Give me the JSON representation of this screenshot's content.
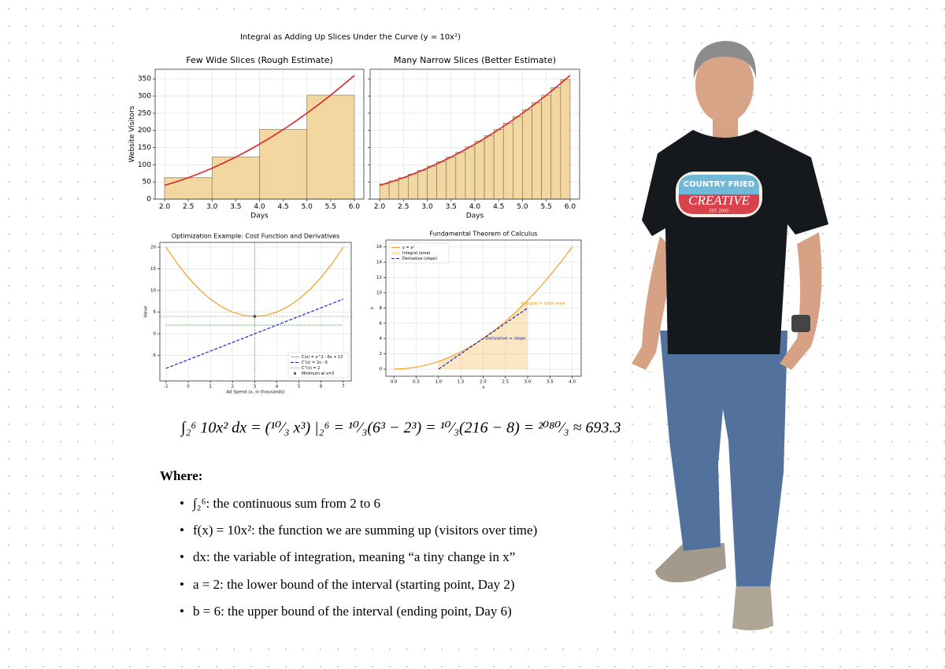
{
  "figure_title": "Integral as Adding Up Slices Under the Curve (y = 10x²)",
  "chart_data": [
    {
      "type": "bar",
      "title": "Few Wide Slices (Rough Estimate)",
      "xlabel": "Days",
      "ylabel": "Website Visitors",
      "xlim": [
        1.8,
        6.2
      ],
      "ylim": [
        0,
        378
      ],
      "xticks": [
        {
          "value": 2,
          "label": "2.0"
        },
        2.5,
        {
          "value": 3,
          "label": "3.0"
        },
        3.5,
        {
          "value": 4,
          "label": "4.0"
        },
        4.5,
        {
          "value": 5,
          "label": "5.0"
        },
        5.5,
        {
          "value": 6,
          "label": "6.0"
        }
      ],
      "yticks": [
        0,
        50,
        100,
        150,
        200,
        250,
        300,
        350
      ],
      "grid": true,
      "series": [
        {
          "type": "bar",
          "color": "#f2d8a0",
          "bins": [
            2,
            3,
            4,
            5,
            6
          ],
          "values": [
            62.5,
            122.5,
            202.5,
            302.5
          ]
        },
        {
          "type": "line",
          "color": "#d62728",
          "x": [
            2,
            2.25,
            2.5,
            2.75,
            3,
            3.25,
            3.5,
            3.75,
            4,
            4.25,
            4.5,
            4.75,
            5,
            5.25,
            5.5,
            5.75,
            6
          ],
          "values": [
            40,
            50.625,
            62.5,
            75.625,
            90,
            105.625,
            122.5,
            140.625,
            160,
            180.625,
            202.5,
            225.625,
            250,
            275.625,
            302.5,
            330.625,
            360
          ]
        }
      ]
    },
    {
      "type": "bar",
      "title": "Many Narrow Slices (Better Estimate)",
      "xlabel": "Days",
      "xlim": [
        1.8,
        6.2
      ],
      "ylim": [
        0,
        378
      ],
      "sharey": true,
      "xticks": [
        {
          "value": 2,
          "label": "2.0"
        },
        2.5,
        {
          "value": 3,
          "label": "3.0"
        },
        3.5,
        {
          "value": 4,
          "label": "4.0"
        },
        4.5,
        {
          "value": 5,
          "label": "5.0"
        },
        5.5,
        {
          "value": 6,
          "label": "6.0"
        }
      ],
      "yticks": [
        0,
        50,
        100,
        150,
        200,
        250,
        300,
        350
      ],
      "grid": true,
      "series": [
        {
          "type": "bar",
          "color": "#f2d8a0",
          "bins": [
            2,
            2.2,
            2.4,
            2.6,
            2.8,
            3,
            3.2,
            3.4,
            3.6,
            3.8,
            4,
            4.2,
            4.4,
            4.6,
            4.8,
            5,
            5.2,
            5.4,
            5.6,
            5.8,
            6
          ],
          "values": [
            44.1,
            52.9,
            62.5,
            72.9,
            84.1,
            96.1,
            108.9,
            122.5,
            136.9,
            152.1,
            168.1,
            184.9,
            202.5,
            220.9,
            240.1,
            260.1,
            280.9,
            302.5,
            324.9,
            348.1
          ]
        },
        {
          "type": "line",
          "color": "#d62728",
          "x": [
            2,
            2.25,
            2.5,
            2.75,
            3,
            3.25,
            3.5,
            3.75,
            4,
            4.25,
            4.5,
            4.75,
            5,
            5.25,
            5.5,
            5.75,
            6
          ],
          "values": [
            40,
            50.625,
            62.5,
            75.625,
            90,
            105.625,
            122.5,
            140.625,
            160,
            180.625,
            202.5,
            225.625,
            250,
            275.625,
            302.5,
            330.625,
            360
          ]
        }
      ]
    },
    {
      "type": "line",
      "title": "Optimization Example: Cost Function and Derivatives",
      "xlabel": "Ad Spend (x, in thousands)",
      "ylabel": "Value",
      "xlim": [
        -1.28,
        7.36
      ],
      "ylim": [
        -10.9,
        21.1
      ],
      "xticks": [
        -1,
        0,
        1,
        2,
        3,
        4,
        5,
        6,
        7
      ],
      "yticks": [
        -5,
        0,
        5,
        10,
        15,
        20
      ],
      "grid": true,
      "legend": "lower right",
      "vline": 3,
      "hline": 4,
      "series": [
        {
          "type": "line",
          "name": "C(x) = x^2 - 6x + 13",
          "color": "#f0a020",
          "x": [
            -1,
            -0.5,
            0,
            0.5,
            1,
            1.5,
            2,
            2.5,
            3,
            3.5,
            4,
            4.5,
            5,
            5.5,
            6,
            6.5,
            7
          ],
          "values": [
            20,
            16.25,
            13,
            10.25,
            8,
            6.25,
            5,
            4.25,
            4,
            4.25,
            5,
            6.25,
            8,
            10.25,
            13,
            16.25,
            20
          ]
        },
        {
          "type": "line",
          "name": "C'(x) = 2x - 6",
          "color": "#2222cc",
          "dash": "dashed",
          "x": [
            -1,
            7
          ],
          "values": [
            -8,
            8
          ]
        },
        {
          "type": "line",
          "name": "C''(x) = 2",
          "color": "#2a9a2a",
          "dash": "dotted",
          "x": [
            -1,
            7
          ],
          "values": [
            2,
            2
          ]
        },
        {
          "type": "scatter",
          "name": "Minimum at x=3",
          "color": "#555555",
          "x": [
            3
          ],
          "values": [
            4
          ]
        }
      ]
    },
    {
      "type": "line",
      "title": "Fundamental Theorem of Calculus",
      "xlabel": "x",
      "ylabel": "y",
      "xlim": [
        -0.18,
        4.2
      ],
      "ylim": [
        -0.93,
        16.9
      ],
      "xticks": [
        {
          "value": 0,
          "label": "0.0"
        },
        0.5,
        {
          "value": 1,
          "label": "1.0"
        },
        1.5,
        {
          "value": 2,
          "label": "2.0"
        },
        2.5,
        {
          "value": 3,
          "label": "3.0"
        },
        3.5,
        {
          "value": 4,
          "label": "4.0"
        }
      ],
      "yticks": [
        0,
        2,
        4,
        6,
        8,
        10,
        12,
        14,
        16
      ],
      "grid": true,
      "legend": "upper left",
      "series": [
        {
          "type": "line",
          "name": "y = x²",
          "color": "#f0a020",
          "x": [
            0,
            0.25,
            0.5,
            0.75,
            1,
            1.25,
            1.5,
            1.75,
            2,
            2.25,
            2.5,
            2.75,
            3,
            3.25,
            3.5,
            3.75,
            4
          ],
          "values": [
            0,
            0.0625,
            0.25,
            0.5625,
            1,
            1.5625,
            2.25,
            3.0625,
            4,
            5.0625,
            6.25,
            7.5625,
            9,
            10.5625,
            12.25,
            14.0625,
            16
          ]
        },
        {
          "type": "area",
          "name": "Integral (area)",
          "color": "#f7c46c",
          "x": [
            1,
            1.25,
            1.5,
            1.75,
            2,
            2.25,
            2.5,
            2.75,
            3
          ],
          "values": [
            1,
            1.5625,
            2.25,
            3.0625,
            4,
            5.0625,
            6.25,
            7.5625,
            9
          ]
        },
        {
          "type": "line",
          "name": "Derivative (slope)",
          "color": "#2222cc",
          "dash": "dashed",
          "x": [
            1,
            3
          ],
          "values": [
            0,
            8
          ]
        }
      ],
      "annotations": [
        {
          "text": "Integral = total area",
          "x": 2.85,
          "y": 8.6,
          "color": "#e69a10"
        },
        {
          "text": "Derivative = slope",
          "x": 2.05,
          "y": 4,
          "color": "#2222cc"
        }
      ]
    }
  ],
  "equation": "∫₂⁶ 10x² dx = (¹⁰⁄₃ x³) |₂⁶ = ¹⁰⁄₃(6³ − 2³) = ¹⁰⁄₃(216 − 8) = ²⁰⁸⁰⁄₃ ≈ 693.3",
  "where": {
    "heading": "Where:",
    "items": [
      "∫₂⁶: the continuous sum from 2 to 6",
      "f(x) = 10x²: the function we are summing up (visitors over time)",
      "dx: the variable of integration, meaning “a tiny change in x”",
      "a = 2: the lower bound of the interval (starting point, Day 2)",
      "b = 6: the upper bound of the interval (ending point, Day 6)"
    ]
  },
  "logo": {
    "line1": "COUNTRY FRIED",
    "line2": "CREATIVE",
    "line3": "EST. 2003"
  }
}
